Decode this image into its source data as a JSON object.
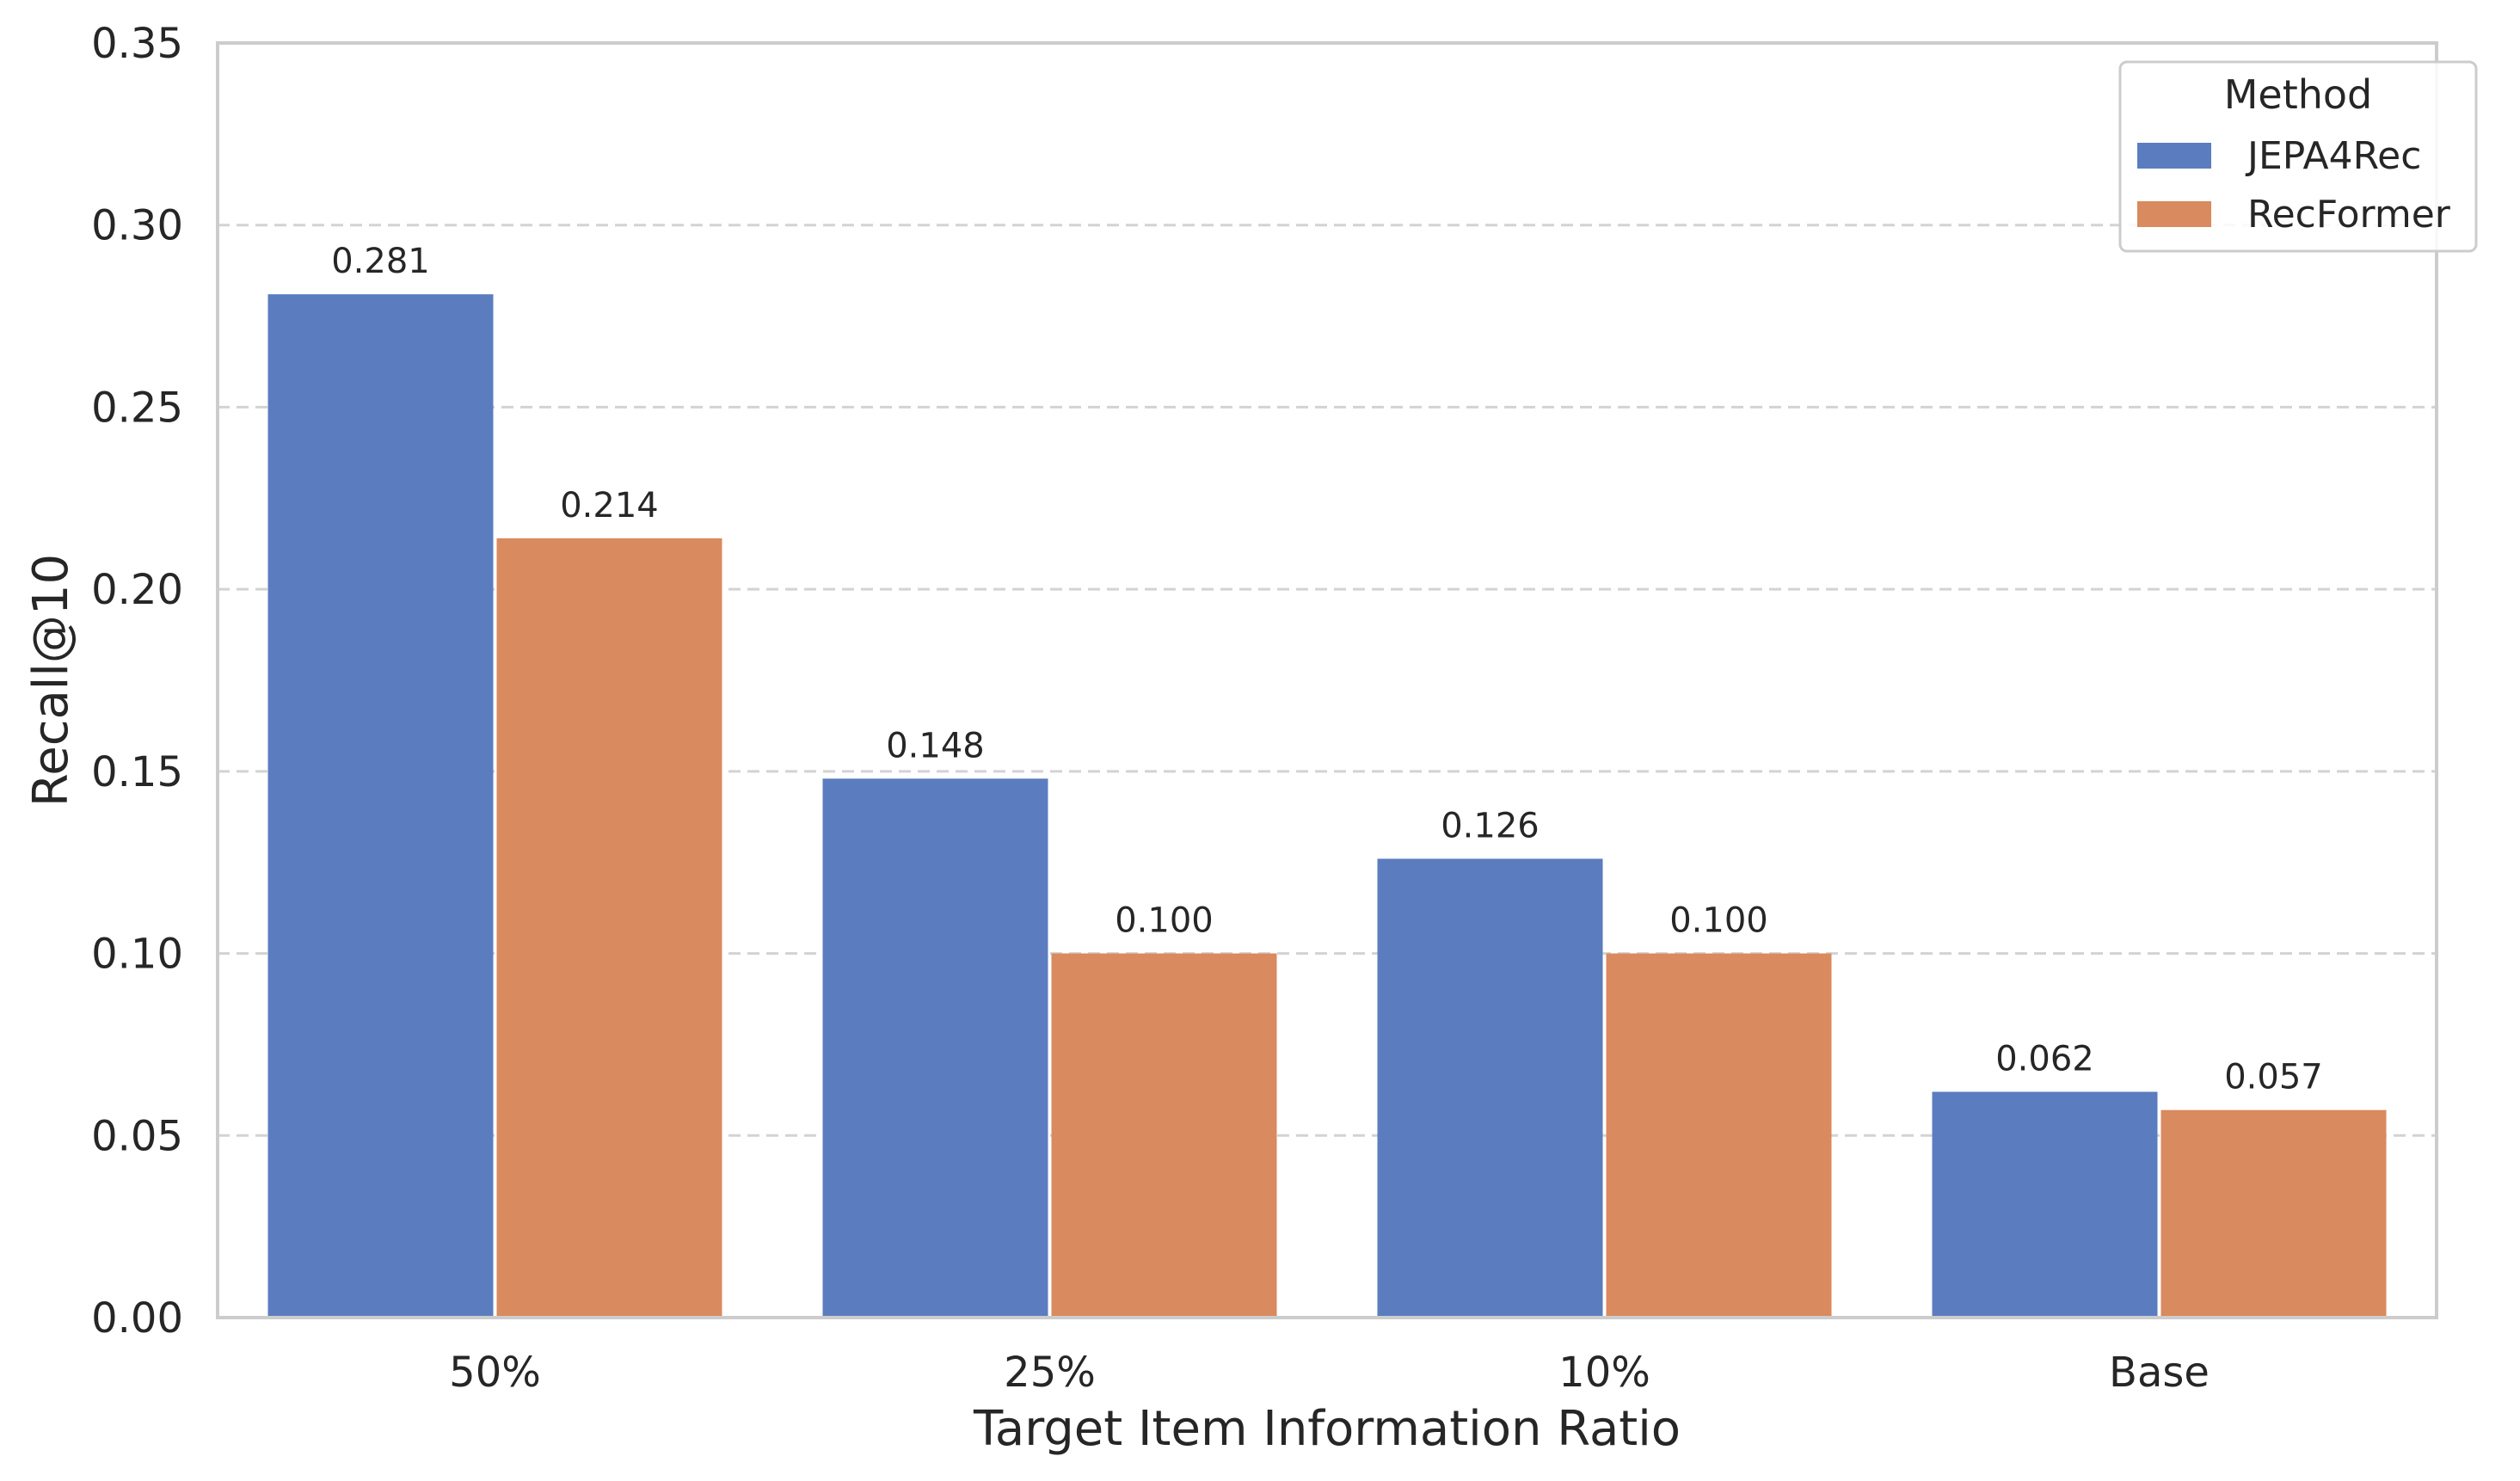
{
  "chart_data": {
    "type": "bar",
    "categories": [
      "50%",
      "25%",
      "10%",
      "Base"
    ],
    "series": [
      {
        "name": "JEPA4Rec",
        "values": [
          0.281,
          0.148,
          0.126,
          0.062
        ],
        "labels": [
          "0.281",
          "0.148",
          "0.126",
          "0.062"
        ],
        "color": "#5b7dbf"
      },
      {
        "name": "RecFormer",
        "values": [
          0.214,
          0.1,
          0.1,
          0.057
        ],
        "labels": [
          "0.214",
          "0.100",
          "0.100",
          "0.057"
        ],
        "color": "#d98a5e"
      }
    ],
    "title": "",
    "xlabel": "Target Item Information Ratio",
    "ylabel": "Recall@10",
    "ylim": [
      0,
      0.35
    ],
    "yticks": [
      "0.00",
      "0.05",
      "0.10",
      "0.15",
      "0.20",
      "0.25",
      "0.30",
      "0.35"
    ],
    "grid": "horizontal dashed",
    "legend": {
      "title": "Method",
      "position": "top-right"
    }
  }
}
